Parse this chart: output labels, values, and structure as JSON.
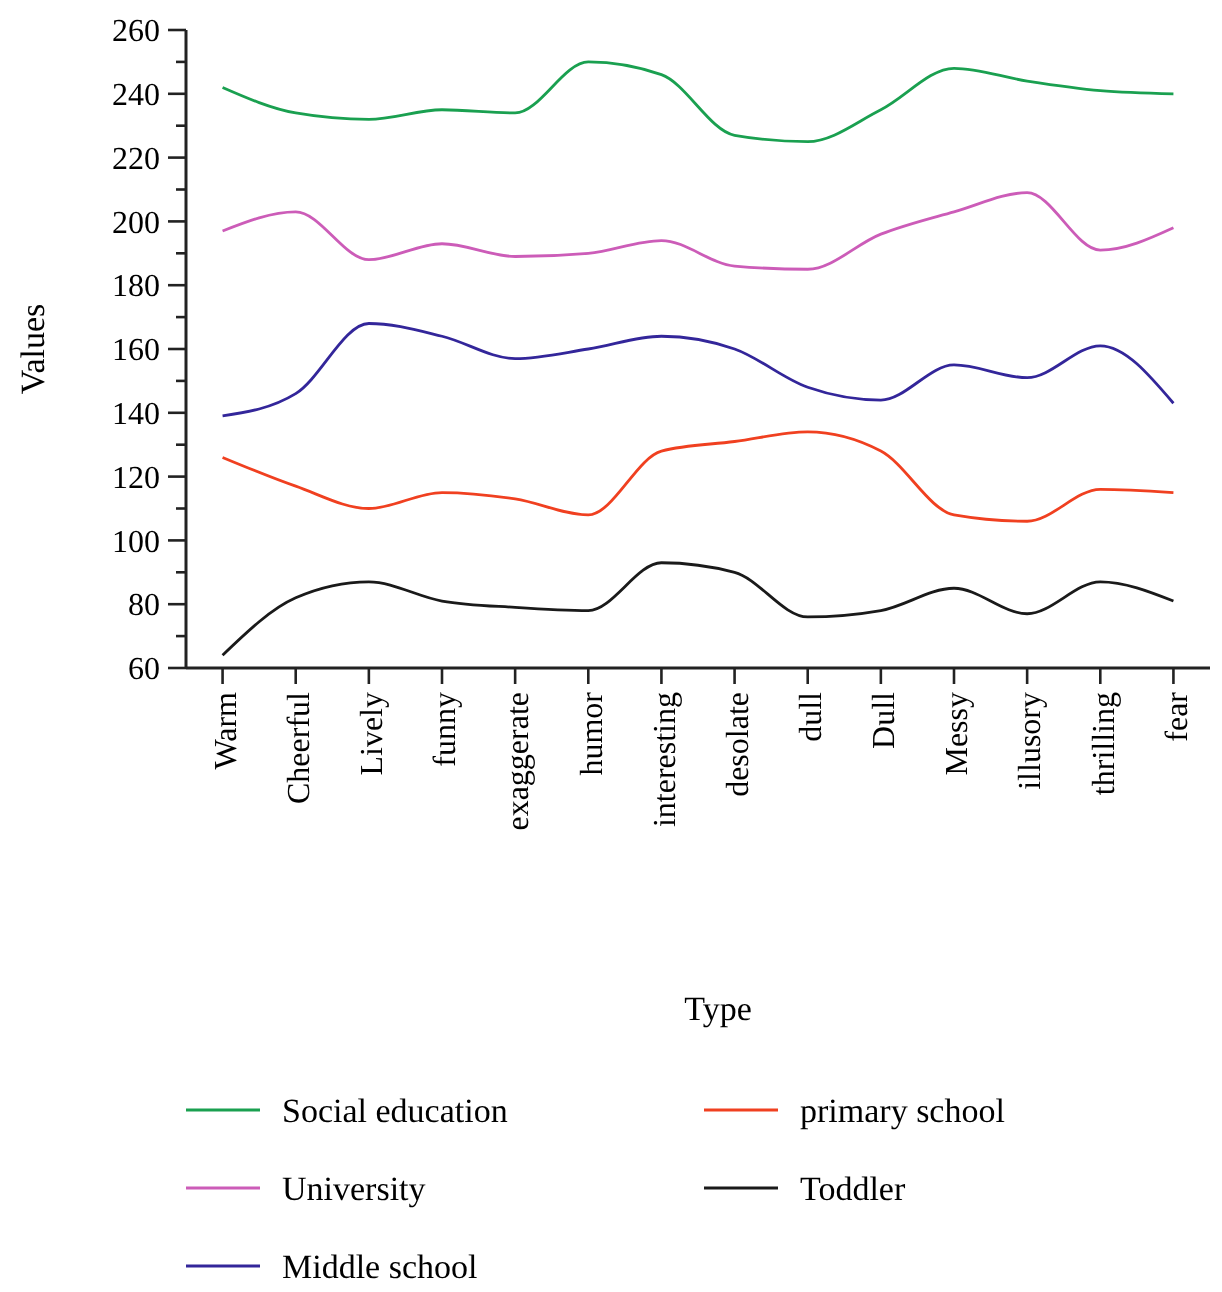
{
  "chart_data": {
    "type": "line",
    "xlabel": "Type",
    "ylabel": "Values",
    "categories": [
      "Warm",
      "Cheerful",
      "Lively",
      "funny",
      "exaggerate",
      "humor",
      "interesting",
      "desolate",
      "dull",
      "Dull",
      "Messy",
      "illusory",
      "thrilling",
      "fear"
    ],
    "series": [
      {
        "name": "Social education",
        "color": "#1aa050",
        "values": [
          242,
          234,
          232,
          235,
          234,
          250,
          246,
          227,
          225,
          235,
          248,
          244,
          241,
          240
        ]
      },
      {
        "name": "primary school",
        "color": "#f04020",
        "values": [
          126,
          117,
          110,
          115,
          113,
          108,
          128,
          131,
          134,
          128,
          108,
          106,
          116,
          115
        ]
      },
      {
        "name": "University",
        "color": "#cc5cb8",
        "values": [
          197,
          203,
          188,
          193,
          189,
          190,
          194,
          186,
          185,
          196,
          203,
          209,
          191,
          198
        ]
      },
      {
        "name": "Toddler",
        "color": "#1a1a1a",
        "values": [
          64,
          82,
          87,
          81,
          79,
          78,
          93,
          90,
          76,
          78,
          85,
          77,
          87,
          81
        ]
      },
      {
        "name": "Middle school",
        "color": "#33269a",
        "values": [
          139,
          146,
          168,
          164,
          157,
          160,
          164,
          160,
          148,
          144,
          155,
          151,
          161,
          143
        ]
      }
    ],
    "ylim": [
      60,
      260
    ],
    "yticks": [
      60,
      {
        "value": 70,
        "label": null
      },
      80,
      {
        "value": 90,
        "label": null
      },
      100,
      {
        "value": 110,
        "label": null
      },
      120,
      {
        "value": 130,
        "label": null
      },
      140,
      {
        "value": 150,
        "label": null
      },
      160,
      {
        "value": 170,
        "label": null
      },
      180,
      {
        "value": 190,
        "label": null
      },
      200,
      {
        "value": 210,
        "label": null
      },
      220,
      {
        "value": 230,
        "label": null
      },
      240,
      {
        "value": 250,
        "label": null
      },
      260
    ],
    "grid": false,
    "legend": "bottom",
    "marker": "none",
    "line_style": "solid"
  }
}
